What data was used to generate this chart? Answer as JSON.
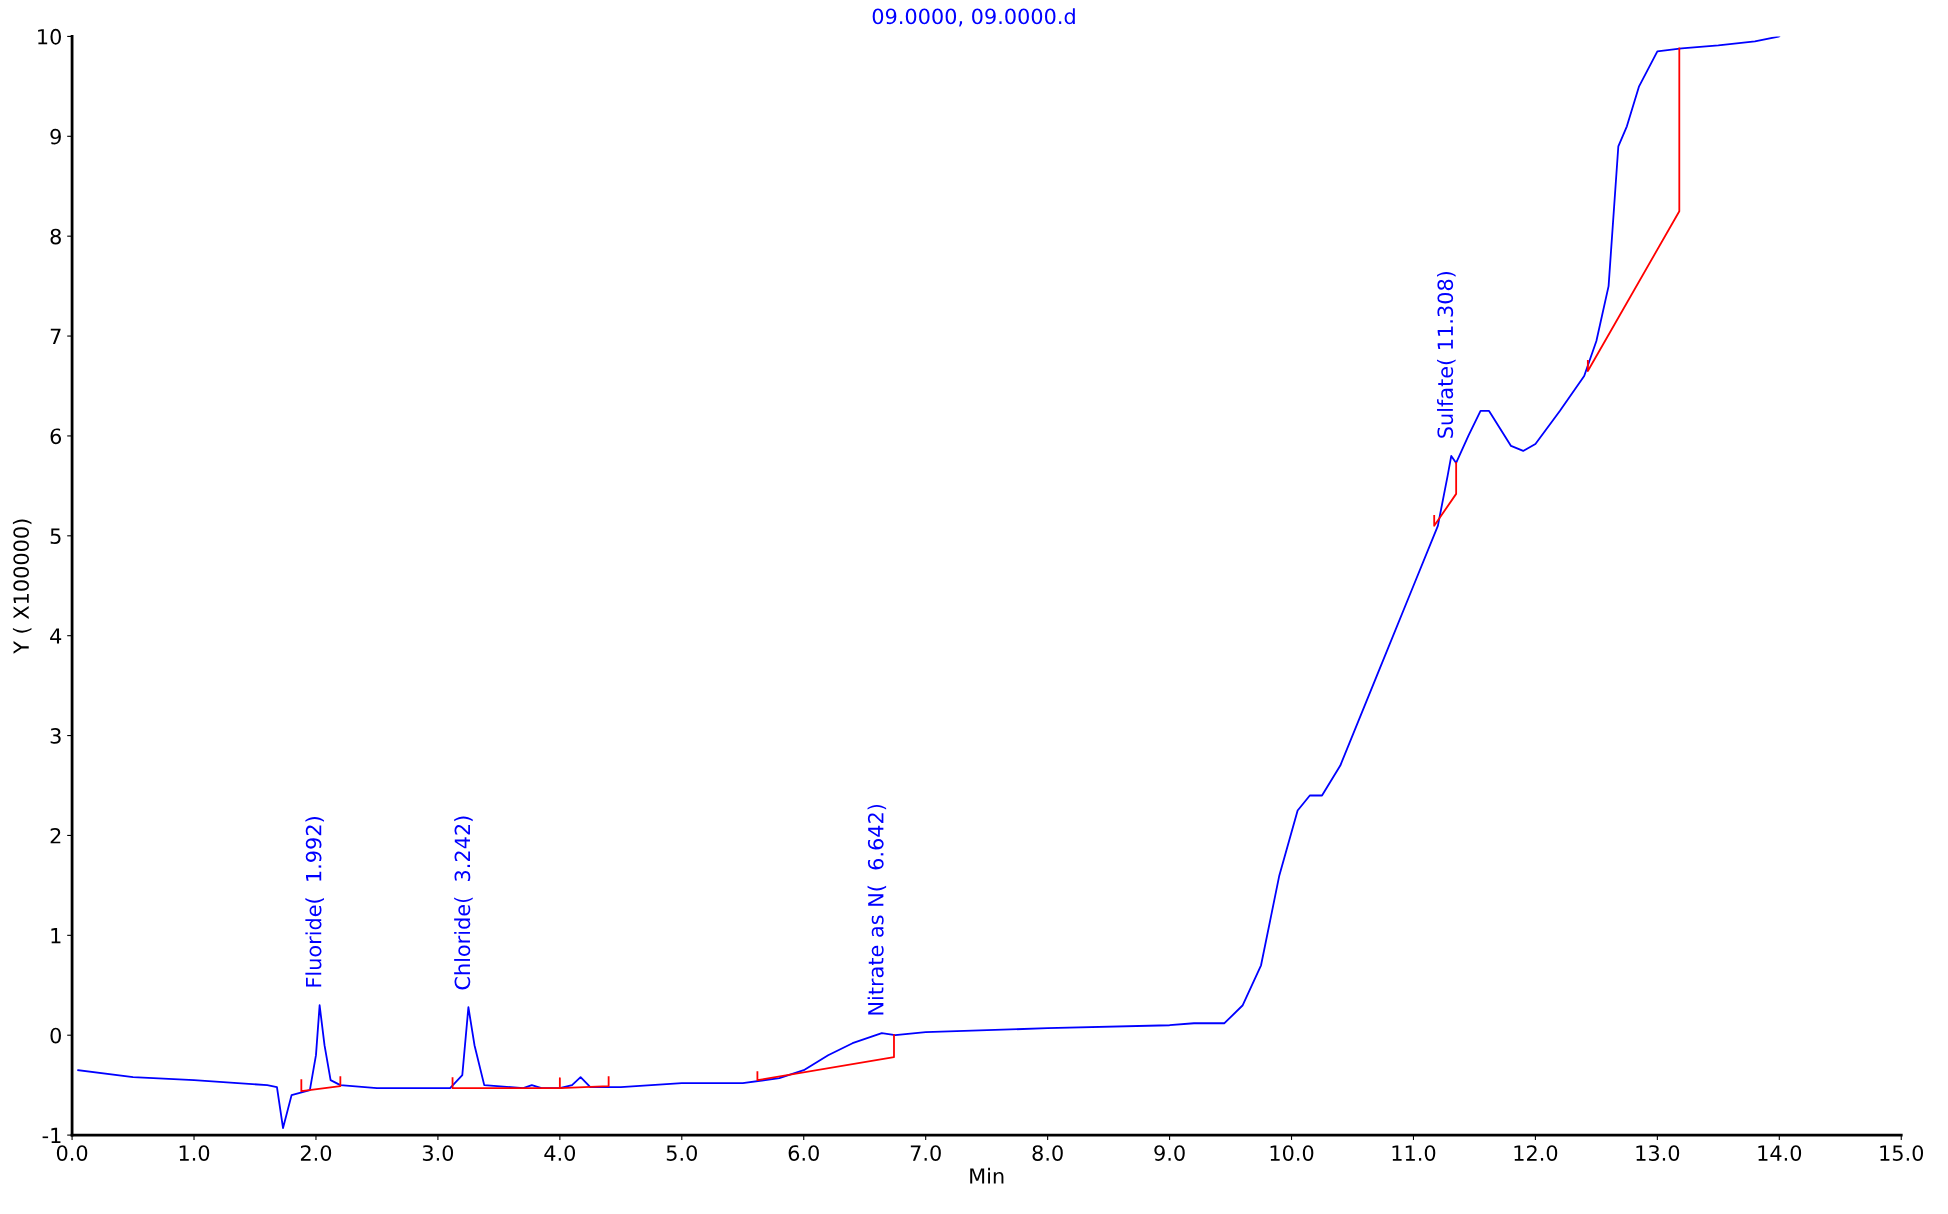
{
  "chart_data": {
    "type": "line",
    "subtitle": "09.0000, 09.0000.d",
    "xlabel": "Min",
    "ylabel": "Y ( X100000)",
    "xlim": [
      0,
      15
    ],
    "ylim": [
      -1,
      10
    ],
    "xticks": [
      {
        "value": 0,
        "label": "0.0"
      },
      {
        "value": 1,
        "label": "1.0"
      },
      {
        "value": 2,
        "label": "2.0"
      },
      {
        "value": 3,
        "label": "3.0"
      },
      {
        "value": 4,
        "label": "4.0"
      },
      {
        "value": 5,
        "label": "5.0"
      },
      {
        "value": 6,
        "label": "6.0"
      },
      {
        "value": 7,
        "label": "7.0"
      },
      {
        "value": 8,
        "label": "8.0"
      },
      {
        "value": 9,
        "label": "9.0"
      },
      {
        "value": 10,
        "label": "10.0"
      },
      {
        "value": 11,
        "label": "11.0"
      },
      {
        "value": 12,
        "label": "12.0"
      },
      {
        "value": 13,
        "label": "13.0"
      },
      {
        "value": 14,
        "label": "14.0"
      },
      {
        "value": 15,
        "label": "15.0"
      }
    ],
    "yticks": [
      -1,
      0,
      1,
      2,
      3,
      4,
      5,
      6,
      7,
      8,
      9,
      10
    ],
    "grid": false,
    "marker": "none",
    "line_style": "solid",
    "series": [
      {
        "color": "#0000ff",
        "x": [
          0.05,
          0.5,
          1.0,
          1.6,
          1.68,
          1.73,
          1.8,
          1.95,
          2.0,
          2.03,
          2.07,
          2.12,
          2.2,
          2.5,
          3.1,
          3.2,
          3.25,
          3.3,
          3.38,
          3.7,
          3.77,
          3.85,
          4.0,
          4.1,
          4.17,
          4.25,
          4.5,
          5.0,
          5.5,
          5.8,
          6.0,
          6.2,
          6.4,
          6.64,
          6.75,
          7.0,
          8.0,
          9.0,
          9.2,
          9.45,
          9.6,
          9.75,
          9.9,
          10.05,
          10.15,
          10.25,
          10.4,
          10.7,
          11.0,
          11.2,
          11.28,
          11.31,
          11.35,
          11.45,
          11.55,
          11.62,
          11.8,
          11.9,
          12.0,
          12.2,
          12.4,
          12.5,
          12.6,
          12.68,
          12.75,
          12.85,
          13.0,
          13.2,
          13.5,
          13.8,
          14.0
        ],
        "values": [
          -0.35,
          -0.42,
          -0.45,
          -0.5,
          -0.52,
          -0.93,
          -0.6,
          -0.55,
          -0.2,
          0.3,
          -0.1,
          -0.45,
          -0.5,
          -0.53,
          -0.53,
          -0.4,
          0.28,
          -0.1,
          -0.5,
          -0.53,
          -0.5,
          -0.53,
          -0.53,
          -0.5,
          -0.42,
          -0.52,
          -0.52,
          -0.48,
          -0.48,
          -0.43,
          -0.35,
          -0.2,
          -0.08,
          0.02,
          0.0,
          0.03,
          0.07,
          0.1,
          0.12,
          0.12,
          0.3,
          0.7,
          1.6,
          2.25,
          2.4,
          2.4,
          2.7,
          3.6,
          4.5,
          5.1,
          5.6,
          5.8,
          5.73,
          6.0,
          6.25,
          6.25,
          5.9,
          5.85,
          5.92,
          6.25,
          6.6,
          6.95,
          7.5,
          8.9,
          9.1,
          9.5,
          9.85,
          9.88,
          9.91,
          9.95,
          10.0
        ]
      },
      {
        "color": "#ff0000",
        "x": [
          1.88,
          1.88,
          2.2,
          2.2,
          null,
          3.12,
          3.12,
          4.0,
          4.0,
          4.0,
          4.4,
          4.4,
          null,
          5.62,
          5.62,
          6.74,
          6.74,
          null,
          11.17,
          11.17,
          11.35,
          11.35,
          null,
          12.43,
          12.43,
          13.18,
          13.18
        ],
        "values": [
          -0.45,
          -0.56,
          -0.51,
          -0.42,
          null,
          -0.43,
          -0.53,
          -0.53,
          -0.43,
          -0.53,
          -0.51,
          -0.42,
          null,
          -0.37,
          -0.45,
          -0.22,
          0.0,
          null,
          5.2,
          5.1,
          5.42,
          5.73,
          null,
          6.75,
          6.65,
          8.25,
          9.88
        ]
      }
    ],
    "annotations": [
      {
        "text": "Fluoride(  1.992)",
        "x": 2.03,
        "y": 0.3
      },
      {
        "text": "Chloride(  3.242)",
        "x": 3.25,
        "y": 0.28
      },
      {
        "text": "Nitrate as N(  6.642)",
        "x": 6.64,
        "y": 0.02
      },
      {
        "text": "Sulfate( 11.308)",
        "x": 11.31,
        "y": 5.8
      }
    ]
  }
}
